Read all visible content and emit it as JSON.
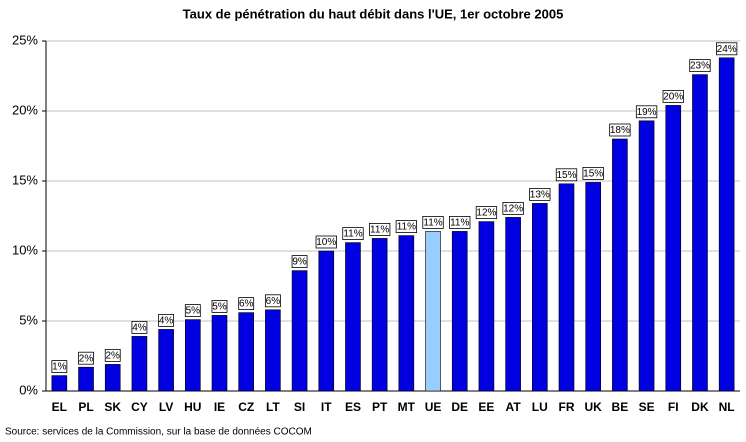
{
  "chart_data": {
    "type": "bar",
    "title": "Taux de pénétration du haut débit dans l'UE, 1er octobre 2005",
    "source": "Source: services de la Commission, sur la base de données COCOM",
    "categories": [
      "EL",
      "PL",
      "SK",
      "CY",
      "LV",
      "HU",
      "IE",
      "CZ",
      "LT",
      "SI",
      "IT",
      "ES",
      "PT",
      "MT",
      "UE",
      "DE",
      "EE",
      "AT",
      "LU",
      "FR",
      "UK",
      "BE",
      "SE",
      "FI",
      "DK",
      "NL"
    ],
    "values": [
      1.1,
      1.7,
      1.9,
      3.9,
      4.4,
      5.1,
      5.4,
      5.6,
      5.8,
      8.6,
      10.0,
      10.6,
      10.9,
      11.1,
      11.4,
      11.4,
      12.1,
      12.4,
      13.4,
      14.8,
      14.9,
      18.0,
      19.3,
      20.4,
      22.6,
      23.8
    ],
    "value_labels": [
      "1%",
      "2%",
      "2%",
      "4%",
      "4%",
      "5%",
      "5%",
      "6%",
      "6%",
      "9%",
      "10%",
      "11%",
      "11%",
      "11%",
      "11%",
      "11%",
      "12%",
      "12%",
      "13%",
      "15%",
      "15%",
      "18%",
      "19%",
      "20%",
      "23%",
      "24%"
    ],
    "colors": [
      "#0000e0",
      "#0000e0",
      "#0000e0",
      "#0000e0",
      "#0000e0",
      "#0000e0",
      "#0000e0",
      "#0000e0",
      "#0000e0",
      "#0000e0",
      "#0000e0",
      "#0000e0",
      "#0000e0",
      "#0000e0",
      "#99ccff",
      "#0000e0",
      "#0000e0",
      "#0000e0",
      "#0000e0",
      "#0000e0",
      "#0000e0",
      "#0000e0",
      "#0000e0",
      "#0000e0",
      "#0000e0",
      "#0000e0"
    ],
    "ylim": [
      0,
      25
    ],
    "yticks": [
      {
        "value": 0,
        "label": "0%"
      },
      {
        "value": 5,
        "label": "5%"
      },
      {
        "value": 10,
        "label": "10%"
      },
      {
        "value": 15,
        "label": "15%"
      },
      {
        "value": 20,
        "label": "20%"
      },
      {
        "value": 25,
        "label": "25%"
      }
    ],
    "grid": true
  }
}
